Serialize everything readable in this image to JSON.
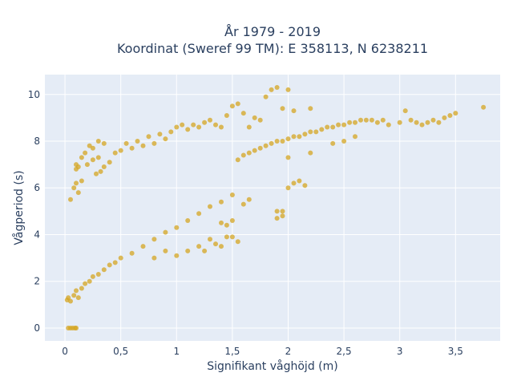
{
  "chart_data": {
    "type": "scatter",
    "title_line1": "År 1979 - 2019",
    "title_line2": "Koordinat (Sweref 99 TM): E 358113, N 6238211",
    "xlabel": "Signifikant våghöjd (m)",
    "ylabel": "Vågperiod (s)",
    "xlim": [
      -0.18,
      3.9
    ],
    "ylim": [
      -0.55,
      10.85
    ],
    "x_ticks": [
      0,
      0.5,
      1,
      1.5,
      2,
      2.5,
      3,
      3.5
    ],
    "x_tick_labels": [
      "0",
      "0,5",
      "1",
      "1,5",
      "2",
      "2,5",
      "3",
      "3,5"
    ],
    "y_ticks": [
      0,
      2,
      4,
      6,
      8,
      10
    ],
    "y_tick_labels": [
      "0",
      "2",
      "4",
      "6",
      "8",
      "10"
    ],
    "grid": true,
    "colors": {
      "marker": "#d4a622",
      "plot_bg": "#e5ecf6",
      "grid": "#ffffff",
      "text": "#2a3f5f"
    },
    "series": [
      {
        "marker_opacity": 0.75,
        "points": [
          [
            0.03,
            0
          ],
          [
            0.05,
            0
          ],
          [
            0.07,
            0
          ],
          [
            0.09,
            0
          ],
          [
            0.1,
            0
          ],
          [
            0.02,
            1.2
          ],
          [
            0.03,
            1.3
          ],
          [
            0.05,
            1.15
          ],
          [
            0.08,
            1.4
          ],
          [
            0.1,
            1.6
          ],
          [
            0.12,
            1.3
          ],
          [
            0.15,
            1.7
          ],
          [
            0.18,
            1.9
          ],
          [
            0.22,
            2.0
          ],
          [
            0.25,
            2.2
          ],
          [
            0.3,
            2.3
          ],
          [
            0.35,
            2.5
          ],
          [
            0.4,
            2.7
          ],
          [
            0.45,
            2.8
          ],
          [
            0.5,
            3.0
          ],
          [
            0.6,
            3.2
          ],
          [
            0.7,
            3.5
          ],
          [
            0.8,
            3.8
          ],
          [
            0.9,
            4.1
          ],
          [
            1.0,
            4.3
          ],
          [
            1.1,
            4.6
          ],
          [
            1.2,
            4.9
          ],
          [
            1.3,
            5.2
          ],
          [
            1.4,
            5.4
          ],
          [
            1.5,
            5.7
          ],
          [
            0.05,
            5.5
          ],
          [
            0.08,
            6.0
          ],
          [
            0.1,
            6.2
          ],
          [
            0.1,
            6.8
          ],
          [
            0.12,
            5.8
          ],
          [
            0.15,
            6.3
          ],
          [
            0.2,
            7.0
          ],
          [
            0.25,
            7.2
          ],
          [
            0.3,
            7.3
          ],
          [
            0.35,
            6.9
          ],
          [
            0.4,
            7.1
          ],
          [
            0.45,
            7.5
          ],
          [
            0.5,
            7.6
          ],
          [
            0.55,
            7.9
          ],
          [
            0.6,
            7.7
          ],
          [
            0.65,
            8.0
          ],
          [
            0.7,
            7.8
          ],
          [
            0.75,
            8.2
          ],
          [
            0.8,
            7.9
          ],
          [
            0.85,
            8.3
          ],
          [
            0.9,
            8.1
          ],
          [
            0.95,
            8.4
          ],
          [
            1.0,
            8.6
          ],
          [
            1.05,
            8.7
          ],
          [
            1.1,
            8.5
          ],
          [
            1.15,
            8.7
          ],
          [
            1.2,
            8.6
          ],
          [
            1.25,
            8.8
          ],
          [
            1.3,
            8.9
          ],
          [
            1.35,
            8.7
          ],
          [
            1.4,
            8.6
          ],
          [
            1.45,
            9.1
          ],
          [
            1.5,
            9.5
          ],
          [
            1.55,
            9.6
          ],
          [
            1.6,
            9.2
          ],
          [
            1.7,
            9.0
          ],
          [
            1.8,
            9.9
          ],
          [
            1.85,
            10.2
          ],
          [
            1.9,
            10.3
          ],
          [
            1.95,
            9.4
          ],
          [
            2.0,
            10.2
          ],
          [
            2.05,
            9.3
          ],
          [
            2.2,
            9.4
          ],
          [
            1.75,
            8.9
          ],
          [
            1.65,
            8.6
          ],
          [
            1.55,
            7.2
          ],
          [
            1.6,
            7.4
          ],
          [
            1.65,
            7.5
          ],
          [
            1.7,
            7.6
          ],
          [
            1.75,
            7.7
          ],
          [
            1.8,
            7.8
          ],
          [
            1.85,
            7.9
          ],
          [
            1.9,
            8.0
          ],
          [
            1.95,
            8.0
          ],
          [
            2.0,
            8.1
          ],
          [
            2.05,
            8.2
          ],
          [
            2.1,
            8.2
          ],
          [
            2.15,
            8.3
          ],
          [
            2.2,
            8.4
          ],
          [
            2.25,
            8.4
          ],
          [
            2.3,
            8.5
          ],
          [
            2.35,
            8.6
          ],
          [
            2.4,
            8.6
          ],
          [
            2.45,
            8.7
          ],
          [
            2.5,
            8.7
          ],
          [
            2.55,
            8.8
          ],
          [
            2.6,
            8.8
          ],
          [
            2.65,
            8.9
          ],
          [
            2.7,
            8.9
          ],
          [
            2.75,
            8.9
          ],
          [
            2.8,
            8.8
          ],
          [
            2.85,
            8.9
          ],
          [
            2.9,
            8.7
          ],
          [
            3.0,
            8.8
          ],
          [
            3.05,
            9.3
          ],
          [
            3.1,
            8.9
          ],
          [
            3.15,
            8.8
          ],
          [
            3.2,
            8.7
          ],
          [
            3.25,
            8.8
          ],
          [
            3.3,
            8.9
          ],
          [
            3.35,
            8.8
          ],
          [
            3.4,
            9.0
          ],
          [
            3.45,
            9.1
          ],
          [
            3.5,
            9.2
          ],
          [
            3.75,
            9.45
          ],
          [
            2.0,
            7.3
          ],
          [
            2.2,
            7.5
          ],
          [
            2.4,
            7.9
          ],
          [
            2.5,
            8.0
          ],
          [
            2.6,
            8.2
          ],
          [
            2.0,
            6.0
          ],
          [
            2.05,
            6.2
          ],
          [
            2.1,
            6.3
          ],
          [
            2.15,
            6.1
          ],
          [
            1.9,
            5.0
          ],
          [
            1.95,
            5.0
          ],
          [
            1.9,
            4.7
          ],
          [
            1.95,
            4.8
          ],
          [
            1.6,
            5.3
          ],
          [
            1.65,
            5.5
          ],
          [
            1.5,
            4.6
          ],
          [
            1.45,
            4.4
          ],
          [
            1.4,
            4.5
          ],
          [
            1.5,
            3.9
          ],
          [
            1.55,
            3.7
          ],
          [
            1.3,
            3.8
          ],
          [
            1.35,
            3.6
          ],
          [
            1.4,
            3.5
          ],
          [
            1.45,
            3.9
          ],
          [
            1.25,
            3.3
          ],
          [
            1.2,
            3.5
          ],
          [
            1.1,
            3.3
          ],
          [
            1.0,
            3.1
          ],
          [
            0.9,
            3.3
          ],
          [
            0.8,
            3.0
          ],
          [
            0.1,
            7.0
          ],
          [
            0.15,
            7.3
          ],
          [
            0.18,
            7.5
          ],
          [
            0.12,
            6.9
          ],
          [
            0.22,
            7.8
          ],
          [
            0.3,
            8.0
          ],
          [
            0.35,
            7.9
          ],
          [
            0.25,
            7.7
          ],
          [
            0.28,
            6.6
          ],
          [
            0.32,
            6.7
          ]
        ]
      }
    ]
  }
}
